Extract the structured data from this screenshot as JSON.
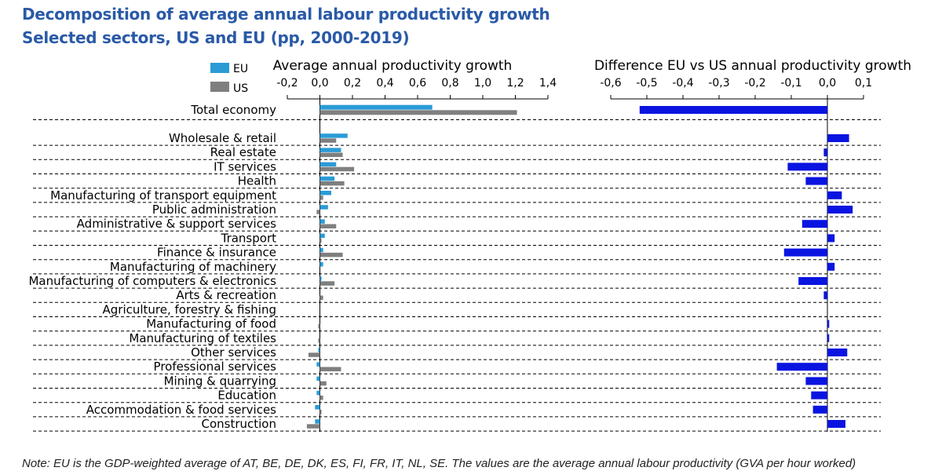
{
  "title": "Decomposition of average annual labour productivity growth",
  "subtitle": "Selected sectors, US and EU (pp, 2000-2019)",
  "note": "Note: EU is the GDP-weighted average of AT, BE, DE, DK, ES, FI, FR, IT, NL, SE. The values are the average annual labour productivity (GVA per hour worked)",
  "colors": {
    "eu": "#2b9bd6",
    "us": "#7f7f7f",
    "diff": "#0a14e0",
    "title": "#2a5aa7"
  },
  "chart_data": [
    {
      "type": "bar",
      "orientation": "horizontal",
      "title": "Average annual productivity growth",
      "xlim": [
        -0.2,
        1.4
      ],
      "ticks": [
        "-0,2",
        "0,0",
        "0,2",
        "0,4",
        "0,6",
        "0,8",
        "1,0",
        "1,2",
        "1,4"
      ],
      "tick_values": [
        -0.2,
        0,
        0.2,
        0.4,
        0.6,
        0.8,
        1.0,
        1.2,
        1.4
      ],
      "legend": "top-left",
      "categories": [
        "Total economy",
        "Wholesale & retail",
        "Real estate",
        "IT services",
        "Health",
        "Manufacturing of transport equipment",
        "Public administration",
        "Administrative & support services",
        "Transport",
        "Finance & insurance",
        "Manufacturing of machinery",
        "Manufacturing of computers & electronics",
        "Arts & recreation",
        "Agriculture, forestry & fishing",
        "Manufacturing of food",
        "Manufacturing of textiles",
        "Other services",
        "Professional services",
        "Mining & quarrying",
        "Education",
        "Accommodation & food services",
        "Construction"
      ],
      "series": [
        {
          "name": "EU",
          "values": [
            0.69,
            0.17,
            0.13,
            0.1,
            0.09,
            0.07,
            0.05,
            0.03,
            0.03,
            0.02,
            0.02,
            0.01,
            0.0,
            0.0,
            0.0,
            0.0,
            -0.01,
            -0.02,
            -0.02,
            -0.02,
            -0.03,
            -0.03
          ]
        },
        {
          "name": "US",
          "values": [
            1.21,
            0.1,
            0.14,
            0.21,
            0.15,
            0.02,
            -0.02,
            0.1,
            0.01,
            0.14,
            0.0,
            0.09,
            0.02,
            0.0,
            -0.01,
            -0.01,
            -0.07,
            0.13,
            0.04,
            0.02,
            0.01,
            -0.08
          ]
        }
      ]
    },
    {
      "type": "bar",
      "orientation": "horizontal",
      "title": "Difference EU vs US annual productivity growth",
      "xlim": [
        -0.6,
        0.1
      ],
      "ticks": [
        "-0,6",
        "-0,5",
        "-0,4",
        "-0,3",
        "-0,2",
        "-0,1",
        "0,0",
        "0,1"
      ],
      "tick_values": [
        -0.6,
        -0.5,
        -0.4,
        -0.3,
        -0.2,
        -0.1,
        0,
        0.1
      ],
      "series": [
        {
          "name": "",
          "values": [
            -0.52,
            0.06,
            -0.01,
            -0.11,
            -0.06,
            0.04,
            0.07,
            -0.07,
            0.02,
            -0.12,
            0.02,
            -0.08,
            -0.01,
            0.0,
            0.005,
            0.005,
            0.055,
            -0.14,
            -0.06,
            -0.045,
            -0.04,
            0.05
          ]
        }
      ]
    }
  ]
}
